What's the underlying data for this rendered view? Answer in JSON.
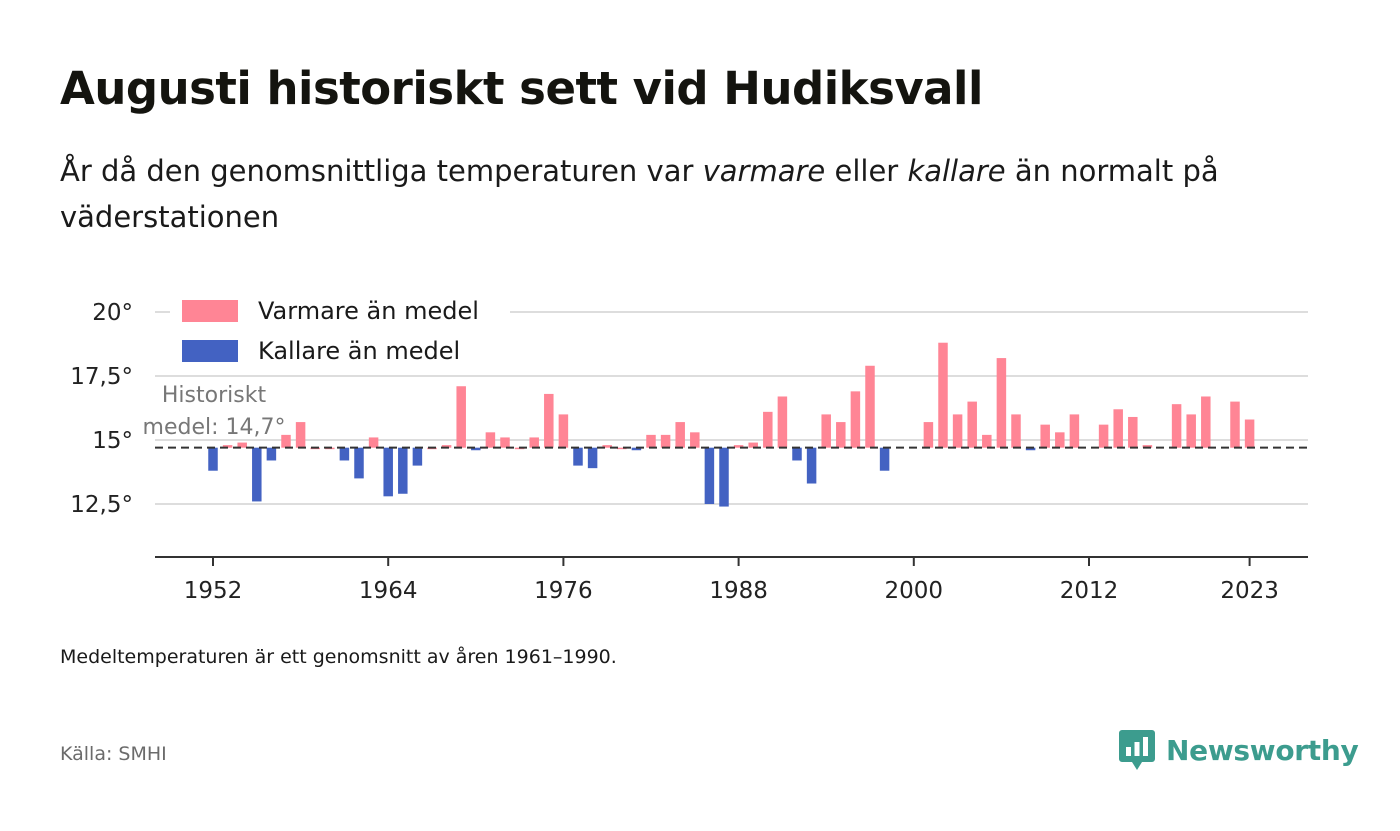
{
  "title": "Augusti historiskt sett vid Hudiksvall",
  "subtitle": {
    "part1": "År då den genomsnittliga temperaturen var ",
    "warm_word": "varmare",
    "part2": " eller ",
    "cold_word": "kallare",
    "part3": " än normalt på väderstationen"
  },
  "note": "Medeltemperaturen är ett genomsnitt av åren 1961–1990.",
  "source": "Källa: SMHI",
  "brand": {
    "name": "Newsworthy",
    "icon": "newsworthy-logo-icon",
    "color": "#3c9c8e"
  },
  "colors": {
    "warm": "#ff8595",
    "cold": "#4362c2",
    "grid": "#dddddd",
    "baseline": "#333333"
  },
  "chart_data": {
    "type": "bar",
    "baseline": 14.7,
    "baseline_label": [
      "Historiskt",
      "medel: 14,7°"
    ],
    "ylim": [
      11.2,
      20.8
    ],
    "y_ticks": [
      12.5,
      15,
      17.5,
      20
    ],
    "y_tick_labels": [
      "12,5°",
      "15°",
      "17,5°",
      "20°"
    ],
    "x_ticks": [
      1952,
      1964,
      1976,
      1988,
      2000,
      2012,
      2023
    ],
    "x_range": [
      1948,
      2027
    ],
    "legend": {
      "position": "top-left",
      "items": [
        {
          "label": "Varmare än medel",
          "key": "warm"
        },
        {
          "label": "Kallare än medel",
          "key": "cold"
        }
      ]
    },
    "series": [
      {
        "years": [
          1952,
          1953,
          1954,
          1955,
          1956,
          1957,
          1958,
          1959,
          1960,
          1961,
          1962,
          1963,
          1964,
          1965,
          1966,
          1967,
          1968,
          1969,
          1970,
          1971,
          1972,
          1973,
          1974,
          1975,
          1976,
          1977,
          1978,
          1979,
          1980,
          1981,
          1982,
          1983,
          1984,
          1985,
          1986,
          1987,
          1988,
          1989,
          1990,
          1991,
          1992,
          1993,
          1994,
          1995,
          1996,
          1997,
          1998,
          2001,
          2002,
          2003,
          2004,
          2005,
          2006,
          2007,
          2008,
          2009,
          2010,
          2011,
          2013,
          2014,
          2015,
          2016,
          2018,
          2019,
          2020,
          2022,
          2023
        ],
        "values": [
          13.8,
          14.8,
          14.9,
          12.6,
          14.2,
          15.2,
          15.7,
          14.7,
          14.7,
          14.2,
          13.5,
          15.1,
          12.8,
          12.9,
          14.0,
          14.7,
          14.8,
          17.1,
          14.6,
          15.3,
          15.1,
          14.7,
          15.1,
          16.8,
          16.0,
          14.0,
          13.9,
          14.8,
          14.7,
          14.6,
          15.2,
          15.2,
          15.7,
          15.3,
          12.5,
          12.4,
          14.8,
          14.9,
          16.1,
          16.7,
          14.2,
          13.3,
          16.0,
          15.7,
          16.9,
          17.9,
          13.8,
          15.7,
          18.8,
          16.0,
          16.5,
          15.2,
          18.2,
          16.0,
          14.6,
          15.6,
          15.3,
          16.0,
          15.6,
          16.2,
          15.9,
          14.8,
          16.4,
          16.0,
          16.7,
          16.5,
          15.8
        ]
      }
    ]
  }
}
